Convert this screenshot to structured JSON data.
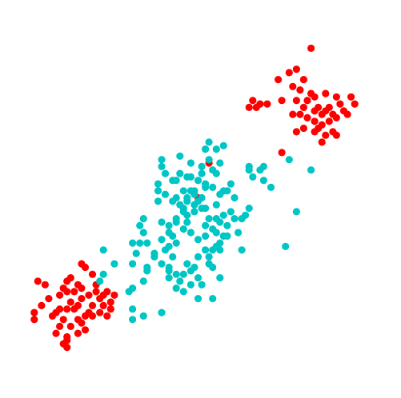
{
  "chart_data": {
    "type": "scatter",
    "title": "",
    "xlabel": "",
    "ylabel": "",
    "axes_visible": false,
    "grid": false,
    "legend": "none",
    "xlim": [
      0,
      100
    ],
    "ylim": [
      0,
      100
    ],
    "series": [
      {
        "color": "#ff0000",
        "points": [
          [
            81,
            93
          ],
          [
            72,
            84
          ],
          [
            75,
            86
          ],
          [
            77,
            87
          ],
          [
            79,
            84
          ],
          [
            76,
            82
          ],
          [
            78,
            81
          ],
          [
            81,
            80
          ],
          [
            80,
            78
          ],
          [
            85,
            80
          ],
          [
            88,
            79
          ],
          [
            92,
            79
          ],
          [
            89,
            77
          ],
          [
            87,
            74
          ],
          [
            85,
            75
          ],
          [
            83,
            76
          ],
          [
            82,
            79
          ],
          [
            79,
            76
          ],
          [
            76,
            74
          ],
          [
            77,
            78
          ],
          [
            82,
            75
          ],
          [
            84,
            74
          ],
          [
            86,
            76
          ],
          [
            90,
            75
          ],
          [
            93,
            77
          ],
          [
            91,
            74
          ],
          [
            88,
            73
          ],
          [
            84,
            71
          ],
          [
            82,
            72
          ],
          [
            80,
            73
          ],
          [
            78,
            74
          ],
          [
            73,
            78
          ],
          [
            65,
            78
          ],
          [
            67,
            77
          ],
          [
            64,
            76
          ],
          [
            69,
            77
          ],
          [
            66,
            76
          ],
          [
            86,
            72
          ],
          [
            83,
            70
          ],
          [
            87,
            69
          ],
          [
            77,
            69
          ],
          [
            79,
            70
          ],
          [
            82,
            69
          ],
          [
            85,
            68
          ],
          [
            84,
            66
          ],
          [
            88,
            68
          ],
          [
            73,
            63
          ],
          [
            53,
            60
          ],
          [
            50,
            50
          ],
          [
            18,
            31
          ],
          [
            6,
            26
          ],
          [
            8,
            25
          ],
          [
            14,
            26
          ],
          [
            14,
            23
          ],
          [
            20,
            22
          ],
          [
            17,
            25
          ],
          [
            22,
            25
          ],
          [
            15,
            27
          ],
          [
            13,
            24
          ],
          [
            16,
            23
          ],
          [
            12,
            22
          ],
          [
            18,
            21
          ],
          [
            24,
            22
          ],
          [
            25,
            23
          ],
          [
            27,
            22
          ],
          [
            26,
            20
          ],
          [
            24,
            19
          ],
          [
            23,
            21
          ],
          [
            21,
            19
          ],
          [
            20,
            17
          ],
          [
            19,
            16
          ],
          [
            16,
            18
          ],
          [
            15,
            20
          ],
          [
            17,
            19
          ],
          [
            14,
            18
          ],
          [
            11,
            17
          ],
          [
            12,
            18
          ],
          [
            9,
            21
          ],
          [
            7,
            19
          ],
          [
            5,
            15
          ],
          [
            5,
            17
          ],
          [
            10,
            16
          ],
          [
            12,
            13
          ],
          [
            13,
            15
          ],
          [
            15,
            13
          ],
          [
            17,
            15
          ],
          [
            18,
            14
          ],
          [
            19,
            12
          ],
          [
            21,
            16
          ],
          [
            23,
            17
          ],
          [
            25,
            16
          ],
          [
            26,
            18
          ],
          [
            17,
            11
          ],
          [
            14,
            10
          ],
          [
            13,
            8
          ],
          [
            14,
            7
          ],
          [
            11,
            11
          ],
          [
            14,
            9
          ],
          [
            21,
            28
          ],
          [
            19,
            30
          ],
          [
            18,
            24
          ],
          [
            22,
            23
          ]
        ]
      },
      {
        "color": "#00c5c5",
        "points": [
          [
            53,
            66
          ],
          [
            55,
            64
          ],
          [
            57,
            65
          ],
          [
            53,
            61
          ],
          [
            54,
            58
          ],
          [
            55,
            57
          ],
          [
            48,
            60
          ],
          [
            51,
            59
          ],
          [
            47,
            56
          ],
          [
            50,
            55
          ],
          [
            48,
            52
          ],
          [
            52,
            54
          ],
          [
            49,
            52
          ],
          [
            51,
            50
          ],
          [
            49,
            48
          ],
          [
            47,
            49
          ],
          [
            44,
            55
          ],
          [
            40,
            61
          ],
          [
            40,
            59
          ],
          [
            39,
            52
          ],
          [
            39,
            49
          ],
          [
            41,
            51
          ],
          [
            43,
            49
          ],
          [
            45,
            48
          ],
          [
            47,
            45
          ],
          [
            46,
            46
          ],
          [
            49,
            46
          ],
          [
            51,
            47
          ],
          [
            53,
            44
          ],
          [
            52,
            42
          ],
          [
            55,
            44
          ],
          [
            57,
            45
          ],
          [
            59,
            46
          ],
          [
            60,
            44
          ],
          [
            58,
            42
          ],
          [
            56,
            43
          ],
          [
            54,
            41
          ],
          [
            52,
            39
          ],
          [
            50,
            38
          ],
          [
            48,
            40
          ],
          [
            46,
            41
          ],
          [
            44,
            43
          ],
          [
            42,
            42
          ],
          [
            40,
            43
          ],
          [
            42,
            40
          ],
          [
            40,
            38
          ],
          [
            42,
            36
          ],
          [
            43,
            39
          ],
          [
            44,
            37
          ],
          [
            41,
            35
          ],
          [
            38,
            34
          ],
          [
            35,
            40
          ],
          [
            34,
            42
          ],
          [
            35,
            44
          ],
          [
            36,
            37
          ],
          [
            34,
            37
          ],
          [
            32,
            37
          ],
          [
            33,
            34
          ],
          [
            36,
            29
          ],
          [
            38,
            33
          ],
          [
            40,
            31
          ],
          [
            42,
            29
          ],
          [
            42,
            27
          ],
          [
            44,
            28
          ],
          [
            45,
            26
          ],
          [
            46,
            28
          ],
          [
            48,
            29
          ],
          [
            47,
            31
          ],
          [
            49,
            30
          ],
          [
            50,
            33
          ],
          [
            52,
            35
          ],
          [
            53,
            33
          ],
          [
            54,
            35
          ],
          [
            56,
            35
          ],
          [
            56,
            37
          ],
          [
            55,
            36
          ],
          [
            57,
            39
          ],
          [
            58,
            39
          ],
          [
            61,
            40
          ],
          [
            62,
            44
          ],
          [
            63,
            45
          ],
          [
            64,
            47
          ],
          [
            60,
            50
          ],
          [
            58,
            52
          ],
          [
            56,
            51
          ],
          [
            54,
            53
          ],
          [
            52,
            53
          ],
          [
            51,
            57
          ],
          [
            48,
            56
          ],
          [
            45,
            57
          ],
          [
            43,
            55
          ],
          [
            44,
            50
          ],
          [
            46,
            52
          ],
          [
            47,
            50
          ],
          [
            49,
            51
          ],
          [
            50,
            49
          ],
          [
            52,
            47
          ],
          [
            55,
            48
          ],
          [
            57,
            52
          ],
          [
            59,
            54
          ],
          [
            64,
            58
          ],
          [
            65,
            56
          ],
          [
            67,
            58
          ],
          [
            68,
            59
          ],
          [
            68,
            55
          ],
          [
            70,
            53
          ],
          [
            75,
            61
          ],
          [
            77,
            46
          ],
          [
            81,
            58
          ],
          [
            74,
            36
          ],
          [
            64,
            59
          ],
          [
            62,
            35
          ],
          [
            24,
            35
          ],
          [
            27,
            31
          ],
          [
            32,
            24
          ],
          [
            32,
            31
          ],
          [
            36,
            30
          ],
          [
            35,
            26
          ],
          [
            31,
            23
          ],
          [
            24,
            28
          ],
          [
            23,
            26
          ],
          [
            46,
            23
          ],
          [
            50,
            21
          ],
          [
            54,
            21
          ],
          [
            56,
            27
          ],
          [
            48,
            25
          ],
          [
            44,
            24
          ],
          [
            32,
            18
          ],
          [
            35,
            16
          ],
          [
            40,
            17
          ],
          [
            32,
            15
          ],
          [
            52,
            64
          ],
          [
            56,
            60
          ],
          [
            45,
            62
          ],
          [
            41,
            57
          ],
          [
            39,
            54
          ],
          [
            44,
            44
          ],
          [
            55,
            40
          ],
          [
            43,
            33
          ],
          [
            50,
            27
          ],
          [
            51,
            25
          ],
          [
            42,
            30
          ],
          [
            53,
            31
          ],
          [
            54,
            30
          ],
          [
            47,
            43
          ],
          [
            46,
            47
          ]
        ]
      }
    ]
  }
}
